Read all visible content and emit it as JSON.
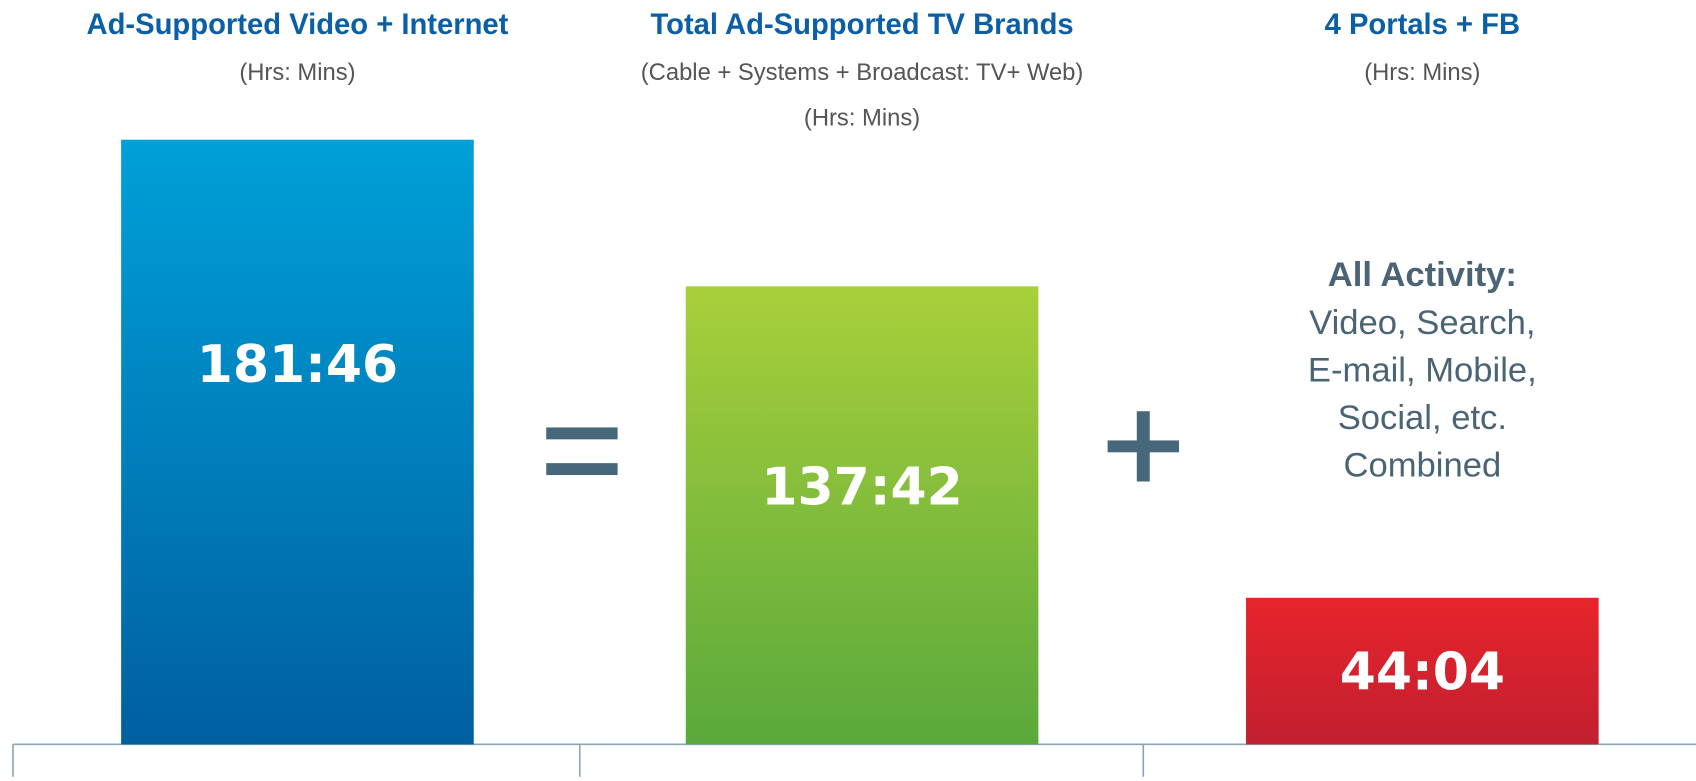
{
  "chart_data": {
    "type": "bar",
    "categories": [
      "Ad-Supported Video + Internet",
      "Total Ad-Supported TV Brands",
      "4 Portals + FB"
    ],
    "subtitles": [
      [
        "(Hrs: Mins)"
      ],
      [
        "(Cable + Systems + Broadcast: TV+ Web)",
        "(Hrs: Mins)"
      ],
      [
        "(Hrs: Mins)"
      ]
    ],
    "values": [
      181.767,
      137.7,
      44.067
    ],
    "value_labels": [
      "181:46",
      "137:42",
      "44:04"
    ],
    "colors": [
      [
        "#00a0d8",
        "#005fa0"
      ],
      [
        "#a9cf3b",
        "#5aa93c"
      ],
      [
        "#e8242b",
        "#c11f30"
      ]
    ],
    "annotation": {
      "heading": "All Activity:",
      "lines": [
        "Video, Search,",
        "E-mail, Mobile,",
        "Social, etc.",
        "Combined"
      ]
    }
  }
}
